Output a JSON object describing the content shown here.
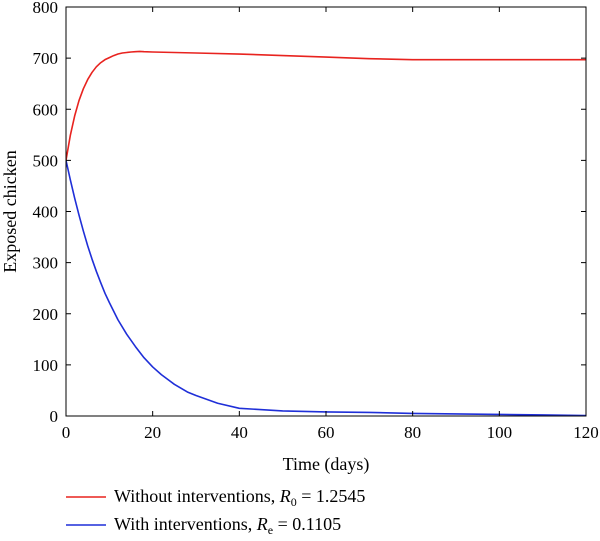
{
  "chart_data": {
    "type": "line",
    "title": "",
    "xlabel": "Time (days)",
    "ylabel": "Exposed chicken",
    "xlim": [
      0,
      120
    ],
    "ylim": [
      0,
      800
    ],
    "xticks": [
      0,
      20,
      40,
      60,
      80,
      100,
      120
    ],
    "yticks": [
      0,
      100,
      200,
      300,
      400,
      500,
      600,
      700,
      800
    ],
    "grid": false,
    "legend_position": "bottom",
    "series": [
      {
        "name": "Without interventions, R0 = 1.2545",
        "legend": {
          "prefix": "Without interventions, ",
          "symbol": "R",
          "subscript": "0",
          "suffix": " = 1.2545"
        },
        "color": "#e8231f",
        "x": [
          0,
          1,
          2,
          3,
          4,
          5,
          6,
          7,
          8,
          9,
          10,
          11,
          12,
          13,
          14,
          15,
          16,
          17,
          18,
          20,
          25,
          30,
          40,
          50,
          60,
          70,
          80,
          90,
          100,
          110,
          120
        ],
        "y": [
          500,
          549,
          587,
          617,
          640,
          658,
          672,
          683,
          691,
          697,
          701,
          705,
          708,
          710,
          711,
          712,
          712.5,
          713,
          712.5,
          712,
          711,
          710,
          708,
          705,
          702,
          699,
          697,
          697,
          697,
          697,
          697
        ]
      },
      {
        "name": "With interventions, Re = 0.1105",
        "legend": {
          "prefix": "With interventions, ",
          "symbol": "R",
          "subscript": "e",
          "suffix": " = 0.1105"
        },
        "color": "#1f2fd8",
        "x": [
          0,
          1,
          2,
          3,
          4,
          5,
          6,
          7,
          8,
          9,
          10,
          12,
          14,
          16,
          18,
          20,
          22,
          25,
          28,
          30,
          35,
          40,
          50,
          60,
          70,
          80,
          90,
          100,
          110,
          120
        ],
        "y": [
          500,
          462,
          426,
          393,
          362,
          333,
          307,
          283,
          261,
          240,
          222,
          188,
          160,
          136,
          114,
          96,
          81,
          62,
          47,
          40,
          25,
          15,
          10,
          8,
          7,
          5,
          4,
          3,
          2,
          1
        ]
      }
    ]
  }
}
